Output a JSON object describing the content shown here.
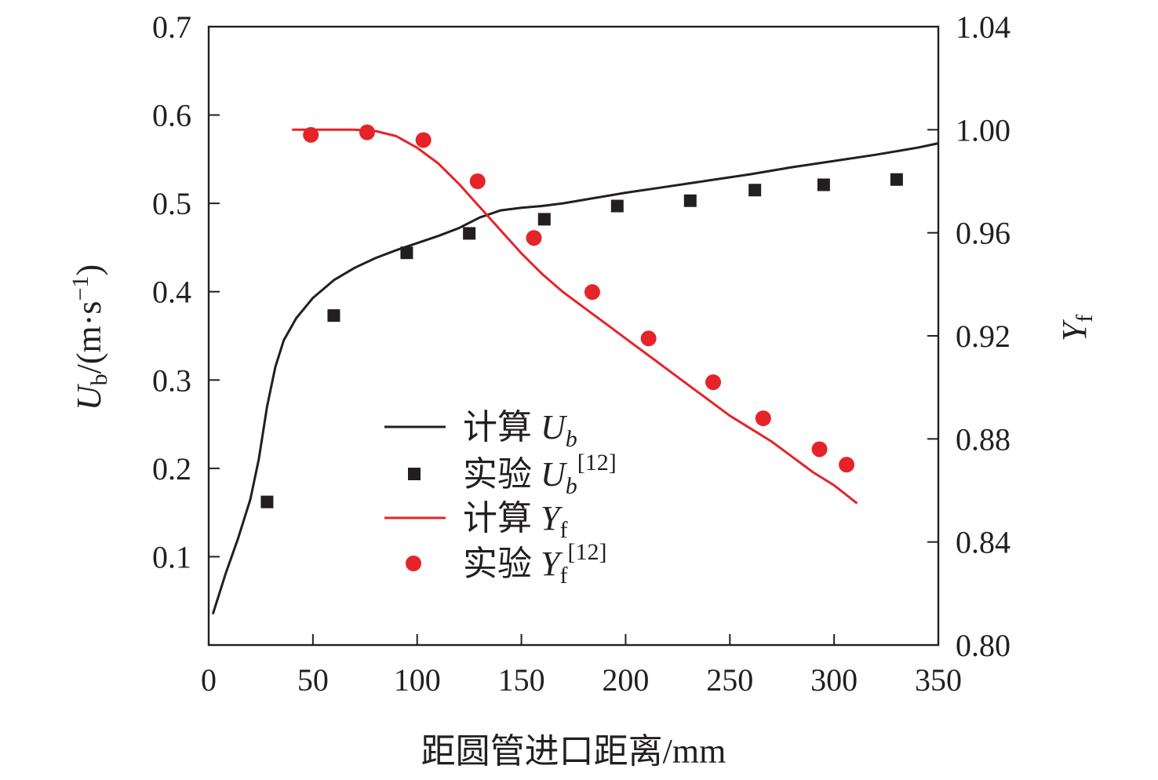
{
  "chart_data": {
    "type": "line",
    "xlabel": "距圆管进口距离/mm",
    "ylabel_left": {
      "var": "U",
      "sub": "b",
      "unit": "/(m·s",
      "sup": "−1",
      "close": ")"
    },
    "ylabel_right": {
      "var": "Y",
      "sub": "f"
    },
    "xlim": [
      0,
      350
    ],
    "ylim_left": [
      0,
      0.7
    ],
    "ylim_right": [
      0.8,
      1.04
    ],
    "xticks": [
      "0",
      "50",
      "100",
      "150",
      "200",
      "250",
      "300",
      "350"
    ],
    "yticks_left": [
      "0.1",
      "0.2",
      "0.3",
      "0.4",
      "0.5",
      "0.6",
      "0.7"
    ],
    "yticks_right": [
      "0.80",
      "0.84",
      "0.88",
      "0.92",
      "0.96",
      "1.00",
      "1.04"
    ],
    "grid": false,
    "legend_position": "lower-center",
    "series": [
      {
        "name": "计算 U_b",
        "axis": "left",
        "kind": "line",
        "color": "#231f20",
        "x": [
          2,
          8,
          14,
          20,
          24,
          28,
          32,
          36,
          42,
          50,
          60,
          70,
          80,
          90,
          100,
          110,
          120,
          130,
          140,
          150,
          160,
          170,
          180,
          200,
          220,
          240,
          260,
          280,
          300,
          320,
          340,
          350
        ],
        "y": [
          0.035,
          0.08,
          0.12,
          0.165,
          0.21,
          0.27,
          0.315,
          0.345,
          0.37,
          0.393,
          0.413,
          0.427,
          0.438,
          0.447,
          0.455,
          0.463,
          0.472,
          0.484,
          0.492,
          0.495,
          0.497,
          0.5,
          0.504,
          0.512,
          0.519,
          0.526,
          0.533,
          0.541,
          0.548,
          0.555,
          0.563,
          0.568
        ]
      },
      {
        "name": "实验 U_b^[12]",
        "axis": "left",
        "kind": "square",
        "color": "#231f20",
        "x": [
          28,
          60,
          95,
          125,
          161,
          196,
          231,
          262,
          295,
          330
        ],
        "y": [
          0.162,
          0.373,
          0.444,
          0.466,
          0.482,
          0.497,
          0.503,
          0.515,
          0.521,
          0.527
        ]
      },
      {
        "name": "计算 Y_f",
        "axis": "right",
        "kind": "line",
        "color": "#e5242a",
        "x": [
          40,
          50,
          60,
          70,
          80,
          90,
          100,
          110,
          120,
          130,
          140,
          150,
          160,
          170,
          180,
          190,
          200,
          210,
          220,
          230,
          240,
          250,
          260,
          270,
          280,
          290,
          300,
          311
        ],
        "y": [
          1.0,
          1.0,
          1.0,
          1.0,
          0.9995,
          0.9975,
          0.993,
          0.987,
          0.979,
          0.97,
          0.961,
          0.952,
          0.944,
          0.937,
          0.931,
          0.925,
          0.919,
          0.913,
          0.907,
          0.901,
          0.895,
          0.889,
          0.884,
          0.879,
          0.873,
          0.867,
          0.862,
          0.855
        ]
      },
      {
        "name": "实验 Y_f^[12]",
        "axis": "right",
        "kind": "circle",
        "color": "#e5242a",
        "x": [
          49,
          76,
          103,
          129,
          156,
          184,
          211,
          242,
          266,
          293,
          306
        ],
        "y": [
          0.998,
          0.999,
          0.996,
          0.98,
          0.958,
          0.937,
          0.919,
          0.902,
          0.888,
          0.876,
          0.87
        ]
      }
    ],
    "legend": [
      {
        "kind": "line",
        "color": "#231f20",
        "label": "计算",
        "var": "U",
        "sub": "b",
        "sub_italic": true,
        "ref": ""
      },
      {
        "kind": "square",
        "color": "#231f20",
        "label": "实验",
        "var": "U",
        "sub": "b",
        "sub_italic": true,
        "ref": "[12]"
      },
      {
        "kind": "line",
        "color": "#e5242a",
        "label": "计算",
        "var": "Y",
        "sub": "f",
        "sub_italic": false,
        "ref": ""
      },
      {
        "kind": "circle",
        "color": "#e5242a",
        "label": "实验",
        "var": "Y",
        "sub": "f",
        "sub_italic": false,
        "ref": "[12]"
      }
    ]
  }
}
